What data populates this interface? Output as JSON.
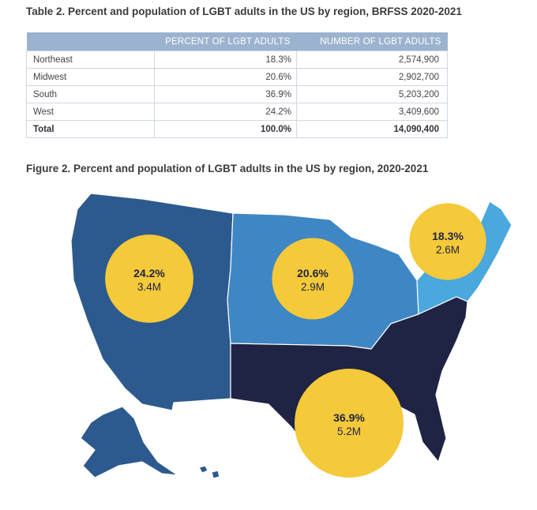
{
  "table": {
    "caption": "Table 2. Percent and population of LGBT adults in the US by region, BRFSS 2020-2021",
    "headers": [
      "",
      "PERCENT OF LGBT ADULTS",
      "NUMBER OF LGBT ADULTS"
    ],
    "rows": [
      {
        "region": "Northeast",
        "percent": "18.3%",
        "number": "2,574,900"
      },
      {
        "region": "Midwest",
        "percent": "20.6%",
        "number": "2,902,700"
      },
      {
        "region": "South",
        "percent": "36.9%",
        "number": "5,203,200"
      },
      {
        "region": "West",
        "percent": "24.2%",
        "number": "3,409,600"
      },
      {
        "region": "Total",
        "percent": "100.0%",
        "number": "14,090,400"
      }
    ]
  },
  "figure": {
    "caption": "Figure 2. Percent and population of LGBT adults in the US by region, 2020-2021"
  },
  "colors": {
    "west": "#2d5a8e",
    "midwest": "#3f86c5",
    "northeast": "#4aa8dc",
    "south": "#1f2444",
    "bubble": "#f4c93a",
    "table_header": "#9cb3cf"
  },
  "chart_data": {
    "type": "bubble-map",
    "categories": [
      "West",
      "Midwest",
      "Northeast",
      "South"
    ],
    "series": [
      {
        "values": [
          24.2,
          20.6,
          18.3,
          36.9
        ]
      }
    ],
    "population_labels": [
      "3.4M",
      "2.9M",
      "2.6M",
      "5.2M"
    ],
    "percent_labels": [
      "24.2%",
      "20.6%",
      "18.3%",
      "36.9%"
    ]
  }
}
